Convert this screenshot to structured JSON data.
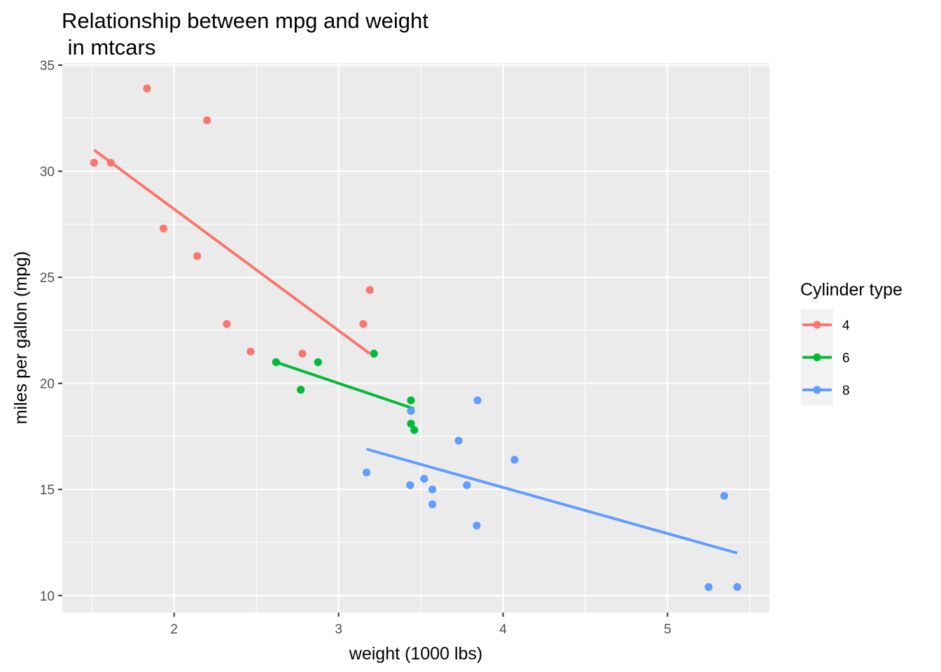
{
  "chart_data": {
    "type": "scatter",
    "title_lines": [
      "Relationship between mpg and weight",
      " in mtcars"
    ],
    "xlabel": "weight (1000 lbs)",
    "ylabel": "miles per gallon (mpg)",
    "xlim": [
      1.32,
      5.62
    ],
    "ylim": [
      9.2,
      35.1
    ],
    "xticks": [
      2,
      3,
      4,
      5
    ],
    "yticks": [
      10,
      15,
      20,
      25,
      30,
      35
    ],
    "grid": true,
    "legend": {
      "title": "Cylinder type",
      "placement": "right"
    },
    "series": [
      {
        "name": "4",
        "color": "#F8766D",
        "points": [
          [
            2.32,
            22.8
          ],
          [
            3.19,
            24.4
          ],
          [
            3.15,
            22.8
          ],
          [
            2.2,
            32.4
          ],
          [
            1.615,
            30.4
          ],
          [
            1.835,
            33.9
          ],
          [
            2.465,
            21.5
          ],
          [
            1.935,
            27.3
          ],
          [
            2.14,
            26.0
          ],
          [
            1.513,
            30.4
          ],
          [
            2.78,
            21.4
          ]
        ],
        "fit": [
          [
            1.513,
            31.0
          ],
          [
            3.19,
            21.4
          ]
        ]
      },
      {
        "name": "6",
        "color": "#00BA38",
        "points": [
          [
            2.62,
            21.0
          ],
          [
            2.875,
            21.0
          ],
          [
            3.215,
            21.4
          ],
          [
            3.44,
            18.1
          ],
          [
            3.44,
            19.2
          ],
          [
            3.46,
            17.8
          ],
          [
            2.77,
            19.7
          ]
        ],
        "fit": [
          [
            2.62,
            21.0
          ],
          [
            3.46,
            18.8
          ]
        ]
      },
      {
        "name": "8",
        "color": "#619CFF",
        "points": [
          [
            3.44,
            18.7
          ],
          [
            3.57,
            14.3
          ],
          [
            4.07,
            16.4
          ],
          [
            3.73,
            17.3
          ],
          [
            3.78,
            15.2
          ],
          [
            5.25,
            10.4
          ],
          [
            5.424,
            10.4
          ],
          [
            5.345,
            14.7
          ],
          [
            3.52,
            15.5
          ],
          [
            3.435,
            15.2
          ],
          [
            3.84,
            13.3
          ],
          [
            3.845,
            19.2
          ],
          [
            3.17,
            15.8
          ],
          [
            3.57,
            15.0
          ]
        ],
        "fit": [
          [
            3.17,
            16.9
          ],
          [
            5.424,
            12.0
          ]
        ]
      }
    ]
  }
}
